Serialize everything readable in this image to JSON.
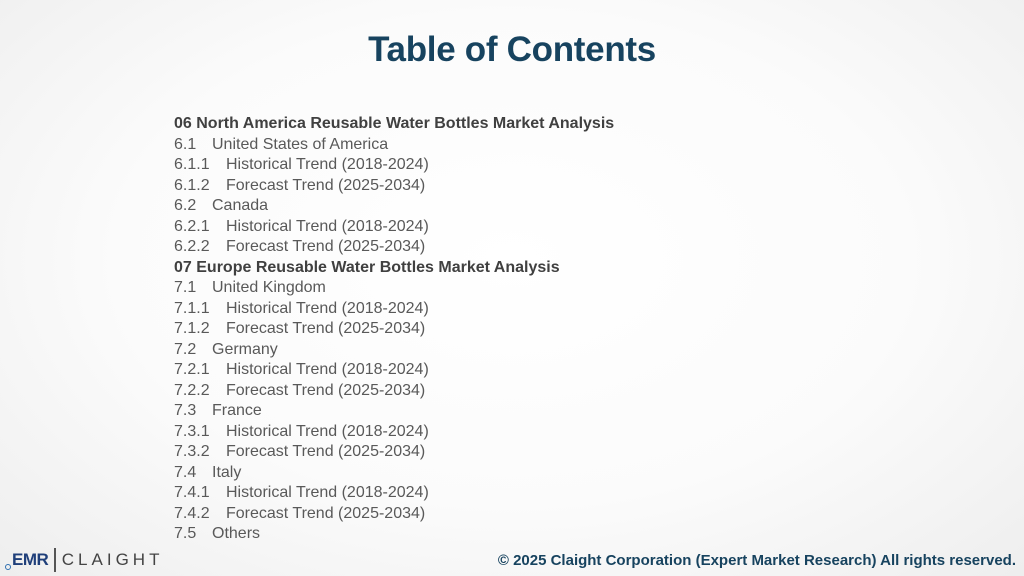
{
  "title": "Table of Contents",
  "entries": [
    {
      "num": "06",
      "text": "North America Reusable Water Bottles Market Analysis",
      "level": 1
    },
    {
      "num": "6.1",
      "text": "United States of America",
      "level": 2
    },
    {
      "num": "6.1.1",
      "text": "Historical Trend (2018-2024)",
      "level": 3
    },
    {
      "num": "6.1.2",
      "text": "Forecast Trend (2025-2034)",
      "level": 3
    },
    {
      "num": "6.2",
      "text": "Canada",
      "level": 2
    },
    {
      "num": "6.2.1",
      "text": "Historical Trend (2018-2024)",
      "level": 3
    },
    {
      "num": "6.2.2",
      "text": "Forecast Trend (2025-2034)",
      "level": 3
    },
    {
      "num": "07",
      "text": "Europe Reusable Water Bottles Market Analysis",
      "level": 1
    },
    {
      "num": "7.1",
      "text": "United Kingdom",
      "level": 2
    },
    {
      "num": "7.1.1",
      "text": "Historical Trend (2018-2024)",
      "level": 3
    },
    {
      "num": "7.1.2",
      "text": "Forecast Trend (2025-2034)",
      "level": 3
    },
    {
      "num": "7.2",
      "text": "Germany",
      "level": 2
    },
    {
      "num": "7.2.1",
      "text": "Historical Trend (2018-2024)",
      "level": 3
    },
    {
      "num": "7.2.2",
      "text": "Forecast Trend (2025-2034)",
      "level": 3
    },
    {
      "num": "7.3",
      "text": "France",
      "level": 2
    },
    {
      "num": "7.3.1",
      "text": "Historical Trend (2018-2024)",
      "level": 3
    },
    {
      "num": "7.3.2",
      "text": "Forecast Trend (2025-2034)",
      "level": 3
    },
    {
      "num": "7.4",
      "text": "Italy",
      "level": 2
    },
    {
      "num": "7.4.1",
      "text": "Historical Trend (2018-2024)",
      "level": 3
    },
    {
      "num": "7.4.2",
      "text": "Forecast Trend (2025-2034)",
      "level": 3
    },
    {
      "num": "7.5",
      "text": "Others",
      "level": 2
    }
  ],
  "logo": {
    "left_text": "EMR",
    "right_text": "CLAIGHT"
  },
  "footer": "© 2025 Claight Corporation (Expert Market Research) All rights reserved.",
  "colors": {
    "title": "#17435f",
    "body_text": "#595959",
    "section_text": "#404040",
    "logo_blue": "#1f3f7a"
  }
}
